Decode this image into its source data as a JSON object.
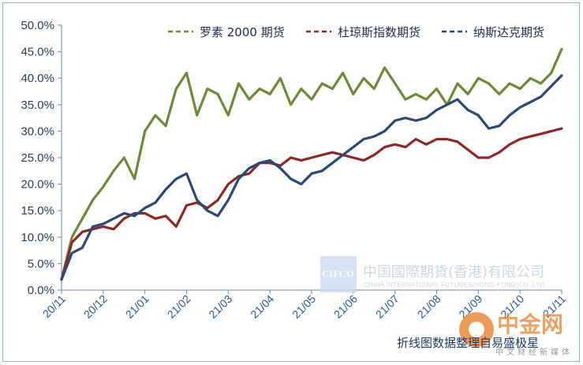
{
  "chart_data": {
    "type": "line",
    "title": "",
    "xlabel": "",
    "ylabel": "",
    "ylim": [
      0,
      50
    ],
    "y_tick_format": "percent",
    "y_ticks": [
      "0.0%",
      "5.0%",
      "10.0%",
      "15.0%",
      "20.0%",
      "25.0%",
      "30.0%",
      "35.0%",
      "40.0%",
      "45.0%",
      "50.0%"
    ],
    "x_ticks": [
      "20/11",
      "20/12",
      "21/01",
      "21/02",
      "21/03",
      "21/04",
      "21/05",
      "21/06",
      "21/07",
      "21/08",
      "21/09",
      "21/10",
      "21/11"
    ],
    "grid": false,
    "legend_position": "top-right",
    "legend_style": "dashed",
    "x": [
      0,
      0.25,
      0.5,
      0.75,
      1,
      1.25,
      1.5,
      1.75,
      2,
      2.25,
      2.5,
      2.75,
      3,
      3.25,
      3.5,
      3.75,
      4,
      4.25,
      4.5,
      4.75,
      5,
      5.25,
      5.5,
      5.75,
      6,
      6.25,
      6.5,
      6.75,
      7,
      7.25,
      7.5,
      7.75,
      8,
      8.25,
      8.5,
      8.75,
      9,
      9.25,
      9.5,
      9.75,
      10,
      10.25,
      10.5,
      10.75,
      11,
      11.25,
      11.5,
      11.75,
      12
    ],
    "series": [
      {
        "name": "罗素 2000 期货",
        "color": "#6e8a3a",
        "values": [
          2,
          10,
          13.5,
          17,
          19.5,
          22.5,
          25,
          21,
          30,
          33,
          31,
          38,
          41,
          33,
          38,
          37,
          33,
          39,
          36,
          38,
          37,
          40,
          35,
          38,
          36,
          39,
          38,
          41,
          37,
          40,
          38,
          42,
          39,
          36,
          37,
          36,
          38,
          35,
          39,
          37,
          40,
          39,
          37,
          39,
          38,
          40,
          39,
          41,
          45.5
        ]
      },
      {
        "name": "杜琼斯指数期货",
        "color": "#8b2a2a",
        "values": [
          2,
          9,
          11,
          11.5,
          12,
          11.5,
          13.5,
          14.5,
          14.5,
          13.5,
          14,
          12,
          16,
          16.5,
          15.5,
          17,
          20,
          21.5,
          22,
          24,
          24,
          23.5,
          25,
          24.5,
          25,
          25.5,
          26,
          25.5,
          25,
          24.5,
          25.5,
          27,
          27.5,
          27,
          28.5,
          27.5,
          28.5,
          28.5,
          28,
          26.5,
          25,
          25,
          26,
          27.5,
          28.5,
          29,
          29.5,
          30,
          30.5
        ]
      },
      {
        "name": "纳斯达克期货",
        "color": "#2c4a73",
        "values": [
          2,
          7,
          8,
          12,
          12.5,
          13.5,
          14.5,
          14,
          15.5,
          16.5,
          19,
          21,
          22,
          17,
          15,
          14,
          17,
          21,
          23,
          24,
          24.5,
          23,
          21,
          20,
          22,
          22.5,
          24,
          25.5,
          27,
          28.5,
          29,
          30,
          32,
          32.5,
          32,
          32.5,
          34,
          35,
          36,
          34,
          33,
          30.5,
          31,
          33,
          34.5,
          35.5,
          36.5,
          38.5,
          40.5
        ]
      }
    ]
  },
  "watermark": {
    "logo_text": "CIFCO",
    "company_cn": "中国國際期貨(香港)有限公司",
    "company_en": "CHINA INTERNATIONAL FUTURES(HONG KONG)CO.,LTD."
  },
  "source_note": "折线图数据整理自易盛极星",
  "cnfol": {
    "name": "中金网",
    "sub": "中文财经新媒体"
  }
}
